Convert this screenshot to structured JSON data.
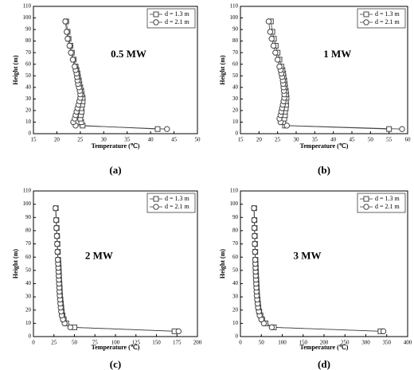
{
  "chart_data": [
    {
      "type": "line",
      "annotation": "0.5 MW",
      "panel_label": "(a)",
      "xlabel": "Temperature (℃)",
      "ylabel": "Height (m)",
      "xlim": [
        15,
        50
      ],
      "xticks": [
        15,
        20,
        25,
        30,
        35,
        40,
        45,
        50
      ],
      "ylim": [
        0,
        110
      ],
      "yticks": [
        0,
        10,
        20,
        30,
        40,
        50,
        60,
        70,
        80,
        90,
        100,
        110
      ],
      "legend": "upper right",
      "series": [
        {
          "name": "d = 1.3 m",
          "color": "#444444",
          "marker": "square",
          "x": [
            41.5,
            25.5,
            25.2,
            25.0,
            25.1,
            25.3,
            25.2,
            25.4,
            25.5,
            25.5,
            25.3,
            25.2,
            25.0,
            24.8,
            24.7,
            24.5,
            24.4,
            24.2,
            24.0,
            23.6,
            23.2,
            22.9,
            22.5,
            22.3,
            22.0
          ],
          "values": [
            4,
            7,
            10,
            13,
            16,
            19,
            22,
            25,
            28,
            31,
            34,
            37,
            40,
            43,
            46,
            49,
            52,
            55,
            58,
            64,
            70,
            76,
            82,
            88,
            97
          ]
        },
        {
          "name": "d = 2.1 m",
          "color": "#444444",
          "marker": "circle",
          "x": [
            43.5,
            24.0,
            23.5,
            23.8,
            24.0,
            24.2,
            24.4,
            24.6,
            24.8,
            25.0,
            25.0,
            24.9,
            24.7,
            24.5,
            24.4,
            24.3,
            24.2,
            24.0,
            23.8,
            23.4,
            23.0,
            22.7,
            22.3,
            22.1,
            21.8
          ],
          "values": [
            4,
            7,
            10,
            13,
            16,
            19,
            22,
            25,
            28,
            31,
            34,
            37,
            40,
            43,
            46,
            49,
            52,
            55,
            58,
            64,
            70,
            76,
            82,
            88,
            97
          ]
        }
      ]
    },
    {
      "type": "line",
      "annotation": "1 MW",
      "panel_label": "(b)",
      "xlabel": "Temperature (℃)",
      "ylabel": "Height (m)",
      "xlim": [
        15,
        60
      ],
      "xticks": [
        15,
        20,
        25,
        30,
        35,
        40,
        45,
        50,
        55,
        60
      ],
      "ylim": [
        0,
        110
      ],
      "yticks": [
        0,
        10,
        20,
        30,
        40,
        50,
        60,
        70,
        80,
        90,
        100,
        110
      ],
      "legend": "upper right",
      "series": [
        {
          "name": "d = 1.3 m",
          "color": "#444444",
          "marker": "square",
          "x": [
            55.0,
            27.0,
            26.5,
            26.8,
            27.0,
            27.0,
            27.2,
            27.3,
            27.2,
            27.4,
            27.3,
            27.2,
            27.0,
            26.9,
            26.8,
            26.6,
            26.5,
            26.3,
            26.0,
            25.5,
            25.0,
            24.5,
            24.0,
            23.6,
            23.2
          ],
          "values": [
            4,
            7,
            10,
            13,
            16,
            19,
            22,
            25,
            28,
            31,
            34,
            37,
            40,
            43,
            46,
            49,
            52,
            55,
            58,
            64,
            70,
            76,
            82,
            88,
            97
          ]
        },
        {
          "name": "d = 2.1 m",
          "color": "#444444",
          "marker": "circle",
          "x": [
            58.5,
            27.5,
            25.8,
            25.5,
            25.8,
            26.0,
            26.2,
            26.4,
            26.6,
            26.8,
            26.8,
            26.7,
            26.6,
            26.5,
            26.4,
            26.2,
            26.0,
            25.8,
            25.5,
            25.0,
            24.4,
            23.9,
            23.4,
            23.0,
            22.6
          ],
          "values": [
            4,
            7,
            10,
            13,
            16,
            19,
            22,
            25,
            28,
            31,
            34,
            37,
            40,
            43,
            46,
            49,
            52,
            55,
            58,
            64,
            70,
            76,
            82,
            88,
            97
          ]
        }
      ]
    },
    {
      "type": "line",
      "annotation": "2 MW",
      "panel_label": "(c)",
      "xlabel": "Temperature (℃)",
      "ylabel": "Height (m)",
      "xlim": [
        0,
        200
      ],
      "xticks": [
        0,
        25,
        50,
        75,
        100,
        125,
        150,
        175,
        200
      ],
      "ylim": [
        0,
        110
      ],
      "yticks": [
        0,
        10,
        20,
        30,
        40,
        50,
        60,
        70,
        80,
        90,
        100,
        110
      ],
      "legend": "upper right",
      "series": [
        {
          "name": "d = 1.3 m",
          "color": "#444444",
          "marker": "square",
          "x": [
            172,
            50,
            40,
            37,
            35.5,
            34.5,
            34,
            33.5,
            33,
            32.5,
            32.2,
            32,
            31.7,
            31.4,
            31.2,
            31,
            30.8,
            30.5,
            30.2,
            29.8,
            29.3,
            28.9,
            28.4,
            28,
            27.3
          ],
          "values": [
            4,
            7,
            10,
            13,
            16,
            19,
            22,
            25,
            28,
            31,
            34,
            37,
            40,
            43,
            46,
            49,
            52,
            55,
            58,
            64,
            70,
            76,
            82,
            88,
            97
          ]
        },
        {
          "name": "d = 2.1 m",
          "color": "#444444",
          "marker": "circle",
          "x": [
            177,
            45,
            38,
            36,
            34.5,
            33.8,
            33.2,
            32.8,
            32.4,
            32,
            31.7,
            31.5,
            31.2,
            31,
            30.8,
            30.5,
            30.3,
            30,
            29.7,
            29.3,
            28.9,
            28.5,
            28,
            27.6,
            27
          ],
          "values": [
            4,
            7,
            10,
            13,
            16,
            19,
            22,
            25,
            28,
            31,
            34,
            37,
            40,
            43,
            46,
            49,
            52,
            55,
            58,
            64,
            70,
            76,
            82,
            88,
            97
          ]
        }
      ]
    },
    {
      "type": "line",
      "annotation": "3 MW",
      "panel_label": "(d)",
      "xlabel": "Temperature (℃)",
      "ylabel": "Height (m)",
      "xlim": [
        0,
        400
      ],
      "xticks": [
        0,
        50,
        100,
        150,
        200,
        250,
        300,
        350,
        400
      ],
      "ylim": [
        0,
        110
      ],
      "yticks": [
        0,
        10,
        20,
        30,
        40,
        50,
        60,
        70,
        80,
        90,
        100,
        110
      ],
      "legend": "upper right",
      "series": [
        {
          "name": "d = 1.3 m",
          "color": "#444444",
          "marker": "square",
          "x": [
            335,
            80,
            60,
            52,
            48,
            45,
            43,
            42,
            41,
            40,
            39.5,
            39,
            38.5,
            38,
            37.5,
            37,
            36.7,
            36.3,
            36,
            35.5,
            35,
            34.5,
            34,
            33.6,
            33
          ],
          "values": [
            4,
            7,
            10,
            13,
            16,
            19,
            22,
            25,
            28,
            31,
            34,
            37,
            40,
            43,
            46,
            49,
            52,
            55,
            58,
            64,
            70,
            76,
            82,
            88,
            97
          ]
        },
        {
          "name": "d = 2.1 m",
          "color": "#444444",
          "marker": "circle",
          "x": [
            342,
            75,
            56,
            50,
            46,
            44,
            42,
            41,
            40,
            39,
            38.5,
            38,
            37.5,
            37,
            36.6,
            36.3,
            36,
            35.6,
            35.3,
            34.8,
            34.3,
            33.8,
            33.3,
            32.9,
            32.4
          ],
          "values": [
            4,
            7,
            10,
            13,
            16,
            19,
            22,
            25,
            28,
            31,
            34,
            37,
            40,
            43,
            46,
            49,
            52,
            55,
            58,
            64,
            70,
            76,
            82,
            88,
            97
          ]
        }
      ]
    }
  ]
}
